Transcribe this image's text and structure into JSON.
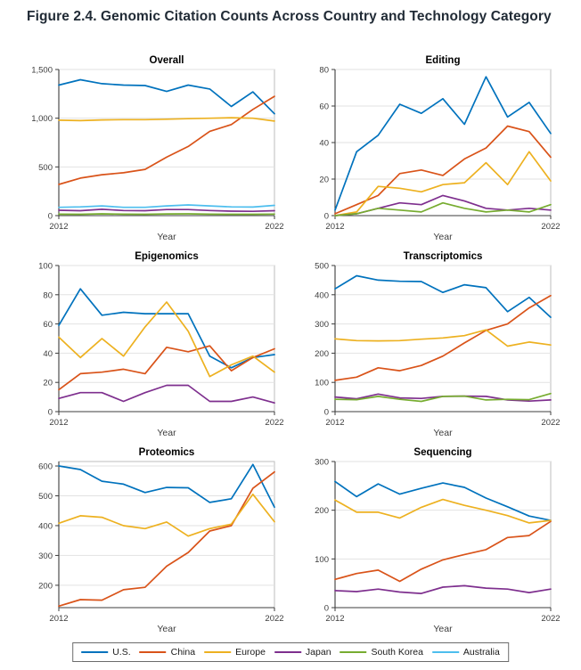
{
  "figure_title": "Figure 2.4. Genomic Citation Counts Across Country and Technology Category",
  "legend": {
    "items": [
      {
        "label": "U.S.",
        "color": "#0072BD"
      },
      {
        "label": "China",
        "color": "#D95319"
      },
      {
        "label": "Europe",
        "color": "#EDB120"
      },
      {
        "label": "Japan",
        "color": "#7E2F8E"
      },
      {
        "label": "South Korea",
        "color": "#77AC30"
      },
      {
        "label": "Australia",
        "color": "#4DBEEE"
      }
    ]
  },
  "chart_data": [
    {
      "type": "line",
      "title": "Overall",
      "xlabel": "Year",
      "x": [
        2012,
        2013,
        2014,
        2015,
        2016,
        2017,
        2018,
        2019,
        2020,
        2021,
        2022
      ],
      "xticks": [
        2012,
        2022
      ],
      "ylim": [
        0,
        1500
      ],
      "yticks": [
        0,
        500,
        1000,
        1500
      ],
      "ytick_labels": [
        "0",
        "500",
        "1,000",
        "1,500"
      ],
      "grid": true,
      "series": [
        {
          "name": "U.S.",
          "color": "#0072BD",
          "values": [
            1340,
            1395,
            1355,
            1340,
            1335,
            1275,
            1340,
            1300,
            1120,
            1270,
            1045
          ]
        },
        {
          "name": "China",
          "color": "#D95319",
          "values": [
            320,
            385,
            420,
            440,
            475,
            600,
            710,
            865,
            935,
            1090,
            1225
          ]
        },
        {
          "name": "Europe",
          "color": "#EDB120",
          "values": [
            980,
            975,
            982,
            985,
            985,
            990,
            995,
            1000,
            1005,
            1000,
            970
          ]
        },
        {
          "name": "Japan",
          "color": "#7E2F8E",
          "values": [
            55,
            50,
            65,
            52,
            50,
            62,
            62,
            52,
            46,
            44,
            50
          ]
        },
        {
          "name": "South Korea",
          "color": "#77AC30",
          "values": [
            15,
            14,
            18,
            15,
            14,
            17,
            18,
            15,
            14,
            14,
            16
          ]
        },
        {
          "name": "Australia",
          "color": "#4DBEEE",
          "values": [
            85,
            90,
            100,
            85,
            85,
            100,
            110,
            100,
            90,
            88,
            105
          ]
        }
      ]
    },
    {
      "type": "line",
      "title": "Editing",
      "xlabel": "Year",
      "x": [
        2012,
        2013,
        2014,
        2015,
        2016,
        2017,
        2018,
        2019,
        2020,
        2021,
        2022
      ],
      "xticks": [
        2012,
        2022
      ],
      "ylim": [
        0,
        80
      ],
      "yticks": [
        0,
        20,
        40,
        60,
        80
      ],
      "ytick_labels": [
        "0",
        "20",
        "40",
        "60",
        "80"
      ],
      "grid": true,
      "series": [
        {
          "name": "U.S.",
          "color": "#0072BD",
          "values": [
            3,
            35,
            44,
            61,
            56,
            64,
            50,
            76,
            54,
            62,
            45
          ]
        },
        {
          "name": "China",
          "color": "#D95319",
          "values": [
            1,
            6,
            11,
            23,
            25,
            22,
            31,
            37,
            49,
            46,
            32
          ]
        },
        {
          "name": "Europe",
          "color": "#EDB120",
          "values": [
            0,
            2,
            16,
            15,
            13,
            17,
            18,
            29,
            17,
            35,
            19
          ]
        },
        {
          "name": "Japan",
          "color": "#7E2F8E",
          "values": [
            0,
            1,
            4,
            7,
            6,
            11,
            8,
            4,
            3,
            4,
            3
          ]
        },
        {
          "name": "South Korea",
          "color": "#77AC30",
          "values": [
            0,
            1,
            4,
            3,
            2,
            7,
            4,
            2,
            3,
            2,
            6
          ]
        }
      ]
    },
    {
      "type": "line",
      "title": "Epigenomics",
      "xlabel": "Year",
      "x": [
        2012,
        2013,
        2014,
        2015,
        2016,
        2017,
        2018,
        2019,
        2020,
        2021,
        2022
      ],
      "xticks": [
        2012,
        2022
      ],
      "ylim": [
        0,
        100
      ],
      "yticks": [
        0,
        20,
        40,
        60,
        80,
        100
      ],
      "ytick_labels": [
        "0",
        "20",
        "40",
        "60",
        "80",
        "100"
      ],
      "grid": true,
      "series": [
        {
          "name": "U.S.",
          "color": "#0072BD",
          "values": [
            59,
            84,
            66,
            68,
            67,
            67,
            67,
            38,
            30,
            37,
            39
          ]
        },
        {
          "name": "China",
          "color": "#D95319",
          "values": [
            15,
            26,
            27,
            29,
            26,
            44,
            41,
            45,
            28,
            37,
            43
          ]
        },
        {
          "name": "Europe",
          "color": "#EDB120",
          "values": [
            51,
            37,
            50,
            38,
            58,
            75,
            55,
            24,
            32,
            38,
            27
          ]
        },
        {
          "name": "Japan",
          "color": "#7E2F8E",
          "values": [
            9,
            13,
            13,
            7,
            13,
            18,
            18,
            7,
            7,
            10,
            6
          ]
        }
      ]
    },
    {
      "type": "line",
      "title": "Transcriptomics",
      "xlabel": "Year",
      "x": [
        2012,
        2013,
        2014,
        2015,
        2016,
        2017,
        2018,
        2019,
        2020,
        2021,
        2022
      ],
      "xticks": [
        2012,
        2022
      ],
      "ylim": [
        0,
        500
      ],
      "yticks": [
        0,
        100,
        200,
        300,
        400,
        500
      ],
      "ytick_labels": [
        "0",
        "100",
        "200",
        "300",
        "400",
        "500"
      ],
      "grid": true,
      "series": [
        {
          "name": "U.S.",
          "color": "#0072BD",
          "values": [
            420,
            465,
            450,
            446,
            445,
            408,
            434,
            424,
            342,
            391,
            323
          ]
        },
        {
          "name": "China",
          "color": "#D95319",
          "values": [
            107,
            118,
            150,
            140,
            158,
            190,
            235,
            278,
            300,
            355,
            397
          ]
        },
        {
          "name": "Europe",
          "color": "#EDB120",
          "values": [
            249,
            243,
            242,
            243,
            248,
            252,
            260,
            280,
            224,
            238,
            228
          ]
        },
        {
          "name": "Japan",
          "color": "#7E2F8E",
          "values": [
            50,
            44,
            60,
            47,
            45,
            52,
            53,
            52,
            40,
            36,
            40
          ]
        },
        {
          "name": "South Korea",
          "color": "#77AC30",
          "values": [
            42,
            41,
            52,
            42,
            35,
            52,
            53,
            40,
            42,
            41,
            62
          ]
        }
      ]
    },
    {
      "type": "line",
      "title": "Proteomics",
      "xlabel": "Year",
      "x": [
        2012,
        2013,
        2014,
        2015,
        2016,
        2017,
        2018,
        2019,
        2020,
        2021,
        2022
      ],
      "xticks": [
        2012,
        2022
      ],
      "ylim": [
        125,
        615
      ],
      "yticks": [
        200,
        300,
        400,
        500,
        600
      ],
      "ytick_labels": [
        "200",
        "300",
        "400",
        "500",
        "600"
      ],
      "grid": true,
      "series": [
        {
          "name": "U.S.",
          "color": "#0072BD",
          "values": [
            600,
            588,
            549,
            539,
            511,
            528,
            527,
            478,
            490,
            605,
            462
          ]
        },
        {
          "name": "China",
          "color": "#D95319",
          "values": [
            130,
            152,
            150,
            185,
            193,
            264,
            310,
            382,
            400,
            525,
            580
          ]
        },
        {
          "name": "Europe",
          "color": "#EDB120",
          "values": [
            408,
            433,
            428,
            400,
            390,
            412,
            365,
            390,
            405,
            505,
            413
          ]
        }
      ]
    },
    {
      "type": "line",
      "title": "Sequencing",
      "xlabel": "Year",
      "x": [
        2012,
        2013,
        2014,
        2015,
        2016,
        2017,
        2018,
        2019,
        2020,
        2021,
        2022
      ],
      "xticks": [
        2012,
        2022
      ],
      "ylim": [
        0,
        300
      ],
      "yticks": [
        0,
        100,
        200,
        300
      ],
      "ytick_labels": [
        "0",
        "100",
        "200",
        "300"
      ],
      "grid": true,
      "series": [
        {
          "name": "U.S.",
          "color": "#0072BD",
          "values": [
            259,
            228,
            254,
            233,
            245,
            256,
            247,
            225,
            207,
            188,
            179
          ]
        },
        {
          "name": "China",
          "color": "#D95319",
          "values": [
            58,
            70,
            77,
            54,
            79,
            98,
            109,
            119,
            144,
            148,
            177
          ]
        },
        {
          "name": "Europe",
          "color": "#EDB120",
          "values": [
            221,
            196,
            196,
            184,
            206,
            222,
            210,
            200,
            189,
            174,
            179
          ]
        },
        {
          "name": "Japan",
          "color": "#7E2F8E",
          "values": [
            35,
            33,
            38,
            32,
            29,
            42,
            45,
            40,
            38,
            31,
            38
          ]
        }
      ]
    }
  ]
}
